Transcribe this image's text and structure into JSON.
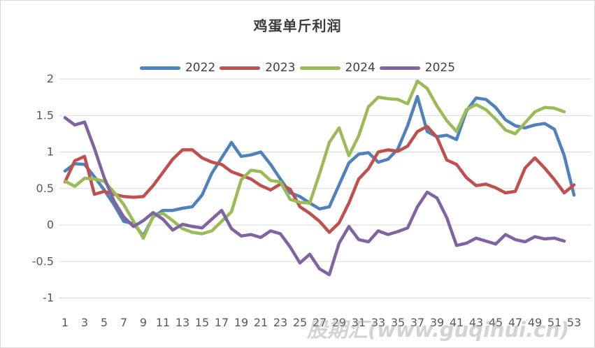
{
  "watermark": "股期汇(www.guqihui.cn)",
  "colors": {
    "series_2022": "#4F81BD",
    "series_2023": "#C0504D",
    "series_2024": "#9BBB59",
    "series_2025": "#8064A2",
    "gridline": "#d9d9d9",
    "axis_text": "#595959",
    "title_text": "#3b3b3b"
  },
  "chart_data": {
    "type": "line",
    "title": "鸡蛋单斤利润",
    "xlabel": "",
    "ylabel": "",
    "ylim": [
      -1,
      2
    ],
    "grid": true,
    "legend_position": "top",
    "x_ticks": [
      "1",
      "3",
      "5",
      "7",
      "9",
      "11",
      "13",
      "15",
      "17",
      "19",
      "21",
      "23",
      "25",
      "27",
      "29",
      "31",
      "33",
      "35",
      "37",
      "39",
      "41",
      "43",
      "45",
      "47",
      "49",
      "51",
      "53"
    ],
    "y_ticks": [
      "2",
      "1.5",
      "1",
      "0.5",
      "0",
      "-0.5",
      "-1"
    ],
    "y_tick_values": [
      2,
      1.5,
      1,
      0.5,
      0,
      -0.5,
      -1
    ],
    "x_start_week": 1,
    "series": [
      {
        "name": "2022",
        "color": "#4F81BD",
        "values": [
          0.74,
          0.84,
          0.83,
          0.66,
          0.48,
          0.28,
          0.05,
          0.02,
          -0.15,
          0.11,
          0.2,
          0.2,
          0.23,
          0.25,
          0.41,
          0.71,
          0.92,
          1.13,
          0.94,
          0.96,
          1.0,
          0.83,
          0.63,
          0.44,
          0.39,
          0.3,
          0.22,
          0.25,
          0.55,
          0.85,
          0.97,
          0.99,
          0.86,
          0.9,
          1.04,
          1.36,
          1.76,
          1.28,
          1.21,
          1.23,
          1.17,
          1.56,
          1.74,
          1.72,
          1.61,
          1.44,
          1.36,
          1.33,
          1.37,
          1.39,
          1.31,
          0.95,
          0.41
        ]
      },
      {
        "name": "2023",
        "color": "#C0504D",
        "values": [
          0.59,
          0.88,
          0.94,
          0.42,
          0.46,
          0.42,
          0.39,
          0.38,
          0.39,
          0.54,
          0.72,
          0.9,
          1.03,
          1.03,
          0.92,
          0.86,
          0.83,
          0.73,
          0.68,
          0.63,
          0.54,
          0.48,
          0.56,
          0.49,
          0.25,
          0.16,
          0.05,
          -0.1,
          0.03,
          0.3,
          0.63,
          0.77,
          1.0,
          1.03,
          1.01,
          1.08,
          1.28,
          1.35,
          1.2,
          0.89,
          0.83,
          0.65,
          0.54,
          0.56,
          0.51,
          0.44,
          0.46,
          0.78,
          0.92,
          0.78,
          0.62,
          0.44,
          0.55
        ]
      },
      {
        "name": "2024",
        "color": "#9BBB59",
        "values": [
          0.6,
          0.53,
          0.64,
          0.63,
          0.6,
          0.45,
          0.28,
          0.05,
          -0.18,
          0.12,
          0.16,
          0.06,
          -0.05,
          -0.1,
          -0.12,
          -0.08,
          0.05,
          0.18,
          0.62,
          0.75,
          0.73,
          0.61,
          0.59,
          0.35,
          0.31,
          0.3,
          0.7,
          1.13,
          1.33,
          0.95,
          1.22,
          1.62,
          1.75,
          1.73,
          1.72,
          1.66,
          1.97,
          1.87,
          1.63,
          1.43,
          1.28,
          1.58,
          1.65,
          1.58,
          1.45,
          1.3,
          1.25,
          1.4,
          1.55,
          1.61,
          1.6,
          1.55
        ]
      },
      {
        "name": "2025",
        "color": "#8064A2",
        "values": [
          1.47,
          1.37,
          1.41,
          1.05,
          0.65,
          0.33,
          0.11,
          -0.02,
          0.06,
          0.17,
          0.08,
          -0.07,
          0.01,
          -0.02,
          -0.04,
          0.08,
          0.2,
          -0.05,
          -0.15,
          -0.13,
          -0.17,
          -0.08,
          -0.12,
          -0.3,
          -0.52,
          -0.4,
          -0.6,
          -0.68,
          -0.25,
          -0.02,
          -0.2,
          -0.23,
          -0.08,
          -0.13,
          -0.09,
          -0.04,
          0.25,
          0.45,
          0.37,
          0.1,
          -0.28,
          -0.25,
          -0.18,
          -0.22,
          -0.26,
          -0.13,
          -0.2,
          -0.23,
          -0.16,
          -0.19,
          -0.18,
          -0.22
        ]
      }
    ]
  }
}
